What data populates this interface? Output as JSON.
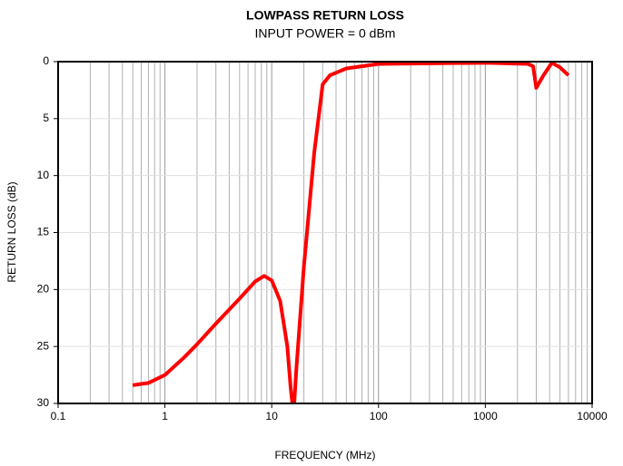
{
  "chart_data": {
    "type": "line",
    "title": "LOWPASS RETURN LOSS",
    "subtitle": "INPUT POWER = 0 dBm",
    "x_label": "FREQUENCY (MHz)",
    "y_label": "RETURN LOSS (dB)",
    "x_scale": "log",
    "y_inverted": true,
    "grid": true,
    "xlim": [
      0.1,
      10000
    ],
    "xticks": [
      0.1,
      1,
      10,
      100,
      1000,
      10000
    ],
    "ylim": [
      0,
      30
    ],
    "yticks": [
      0,
      5,
      10,
      15,
      20,
      25,
      30
    ],
    "x": [
      0.5,
      0.7,
      1,
      1.5,
      2,
      3,
      5,
      7,
      8.5,
      10,
      12,
      14,
      15,
      16,
      17,
      20,
      25,
      30,
      35,
      50,
      100,
      1000,
      2500,
      2800,
      3000,
      3500,
      4200,
      5000,
      6000
    ],
    "series": [
      {
        "name": "Return loss",
        "color": "#ff0000",
        "values": [
          28.4,
          28.2,
          27.5,
          26,
          24.8,
          23,
          20.8,
          19.3,
          18.8,
          19.2,
          21,
          25,
          28.5,
          31,
          27,
          18,
          8,
          2,
          1.2,
          0.6,
          0.2,
          0.1,
          0.2,
          0.4,
          2.3,
          1.2,
          0.1,
          0.5,
          1.2
        ]
      }
    ]
  }
}
